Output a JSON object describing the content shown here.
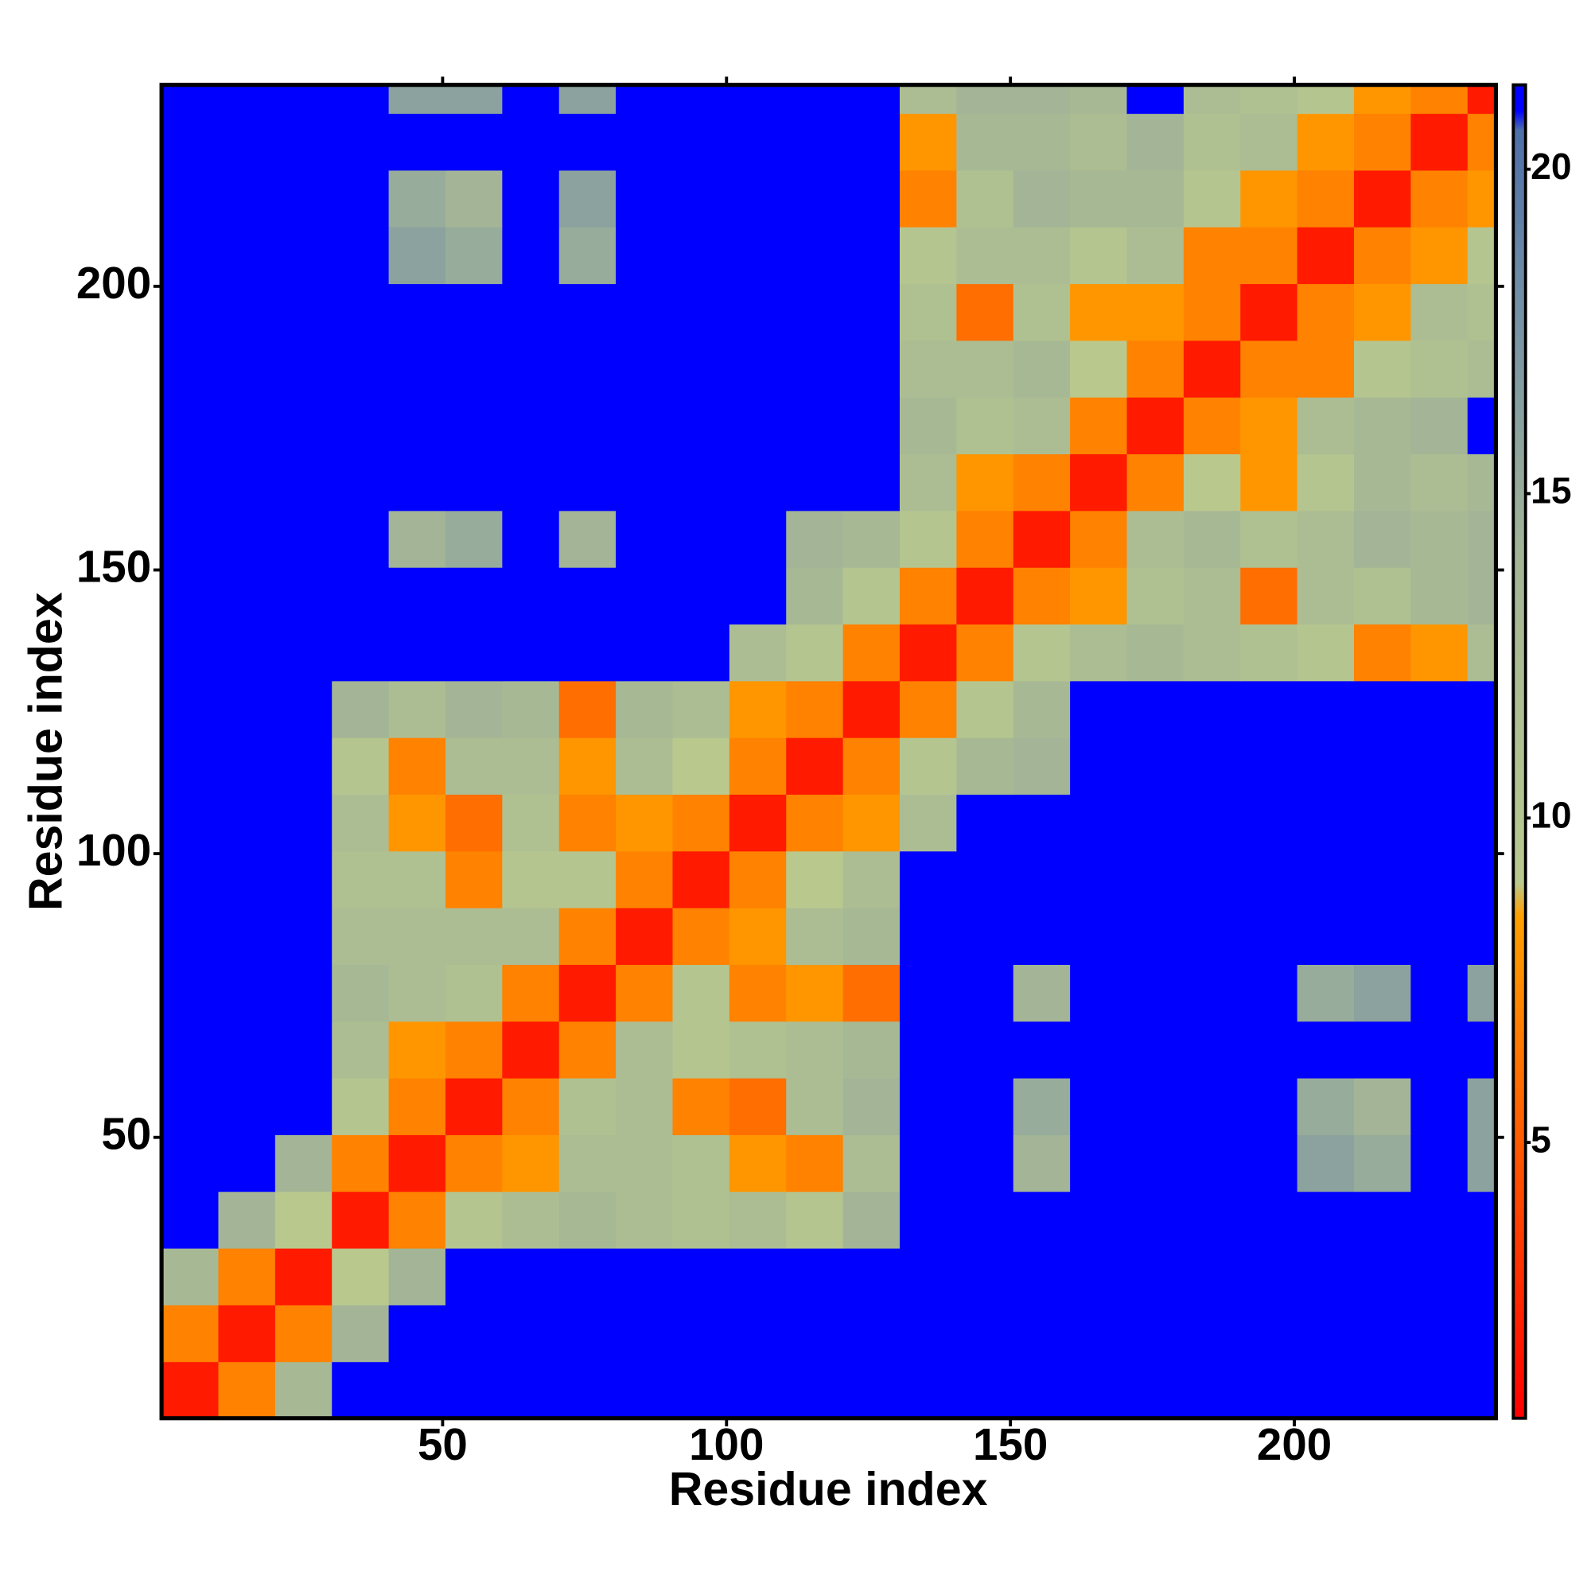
{
  "chart_data": {
    "type": "heatmap",
    "x_label": "Residue index",
    "y_label": "Residue index",
    "bins": [
      0.5,
      10.5,
      20.5,
      30.5,
      40.5,
      50.5,
      60.5,
      70.5,
      80.5,
      90.5,
      100.5,
      110.5,
      120.5,
      130.5,
      140.5,
      150.5,
      160.5,
      170.5,
      180.5,
      190.5,
      200.5,
      210.5,
      220.5,
      230.5,
      235.5
    ],
    "xlim": [
      0.5,
      235.5
    ],
    "ylim": [
      0.5,
      235.5
    ],
    "xticks": [
      50,
      100,
      150,
      200
    ],
    "yticks": [
      50,
      100,
      150,
      200
    ],
    "clim": [
      0.75,
      21.3
    ],
    "cticks": [
      5,
      10,
      15,
      20
    ],
    "colorscale": [
      [
        0.75,
        "#ff0000"
      ],
      [
        5,
        "#ff5a00"
      ],
      [
        8.5,
        "#ffa000"
      ],
      [
        9,
        "#b9c98e"
      ],
      [
        14,
        "#a3b596"
      ],
      [
        18,
        "#728fa6"
      ],
      [
        20.6,
        "#4e6fa8"
      ],
      [
        20.9,
        "#0000ff"
      ],
      [
        21.3,
        "#0000ff"
      ]
    ],
    "values": [
      [
        2,
        7,
        13,
        21,
        21,
        21,
        21,
        21,
        21,
        21,
        21,
        21,
        21,
        21,
        21,
        21,
        21,
        21,
        21,
        21,
        21,
        21,
        21,
        21
      ],
      [
        7,
        2,
        7,
        14,
        21,
        21,
        21,
        21,
        21,
        21,
        21,
        21,
        21,
        21,
        21,
        21,
        21,
        21,
        21,
        21,
        21,
        21,
        21,
        21
      ],
      [
        13,
        7,
        2,
        9,
        14,
        21,
        21,
        21,
        21,
        21,
        21,
        21,
        21,
        21,
        21,
        21,
        21,
        21,
        21,
        21,
        21,
        21,
        21,
        21
      ],
      [
        21,
        14,
        9,
        2,
        7,
        10,
        12,
        13,
        12,
        11,
        12,
        10,
        14,
        21,
        21,
        21,
        21,
        21,
        21,
        21,
        21,
        21,
        21,
        21
      ],
      [
        21,
        21,
        14,
        7,
        2,
        7,
        8,
        12,
        12,
        11,
        8,
        7,
        12,
        21,
        21,
        14,
        21,
        21,
        21,
        21,
        16,
        15,
        21,
        16
      ],
      [
        21,
        21,
        21,
        10,
        7,
        2,
        7,
        11,
        12,
        7,
        6,
        12,
        14,
        21,
        21,
        15,
        21,
        21,
        21,
        21,
        15,
        14,
        21,
        16
      ],
      [
        21,
        21,
        21,
        12,
        8,
        7,
        2,
        7,
        12,
        10,
        11,
        12,
        13,
        21,
        21,
        21,
        21,
        21,
        21,
        21,
        21,
        21,
        21,
        21
      ],
      [
        21,
        21,
        21,
        13,
        12,
        11,
        7,
        2,
        7,
        10,
        7,
        8,
        6,
        21,
        21,
        14,
        21,
        21,
        21,
        21,
        15,
        16,
        21,
        16
      ],
      [
        21,
        21,
        21,
        12,
        12,
        12,
        12,
        7,
        2,
        7,
        8,
        12,
        13,
        21,
        21,
        21,
        21,
        21,
        21,
        21,
        21,
        21,
        21,
        21
      ],
      [
        21,
        21,
        21,
        11,
        11,
        7,
        10,
        10,
        7,
        2,
        7,
        9,
        12,
        21,
        21,
        21,
        21,
        21,
        21,
        21,
        21,
        21,
        21,
        21
      ],
      [
        21,
        21,
        21,
        12,
        8,
        6,
        11,
        7,
        8,
        7,
        2,
        7,
        8,
        12,
        21,
        21,
        21,
        21,
        21,
        21,
        21,
        21,
        21,
        21
      ],
      [
        21,
        21,
        21,
        10,
        7,
        12,
        12,
        8,
        12,
        9,
        7,
        2,
        7,
        10,
        13,
        14,
        21,
        21,
        21,
        21,
        21,
        21,
        21,
        21
      ],
      [
        21,
        21,
        21,
        14,
        12,
        14,
        13,
        6,
        13,
        12,
        8,
        7,
        2,
        7,
        10,
        13,
        21,
        21,
        21,
        21,
        21,
        21,
        21,
        21
      ],
      [
        21,
        21,
        21,
        21,
        21,
        21,
        21,
        21,
        21,
        21,
        12,
        10,
        7,
        2,
        7,
        10,
        12,
        13,
        12,
        11,
        10,
        7,
        8,
        12
      ],
      [
        21,
        21,
        21,
        21,
        21,
        21,
        21,
        21,
        21,
        21,
        21,
        13,
        10,
        7,
        2,
        7,
        8,
        11,
        12,
        6,
        12,
        11,
        13,
        14
      ],
      [
        21,
        21,
        21,
        21,
        14,
        15,
        21,
        14,
        21,
        21,
        21,
        14,
        13,
        10,
        7,
        2,
        7,
        12,
        13,
        11,
        12,
        14,
        13,
        14
      ],
      [
        21,
        21,
        21,
        21,
        21,
        21,
        21,
        21,
        21,
        21,
        21,
        21,
        21,
        12,
        8,
        7,
        2,
        7,
        9,
        8,
        10,
        13,
        12,
        13
      ],
      [
        21,
        21,
        21,
        21,
        21,
        21,
        21,
        21,
        21,
        21,
        21,
        21,
        21,
        13,
        11,
        12,
        7,
        2,
        7,
        8,
        12,
        13,
        14,
        21
      ],
      [
        21,
        21,
        21,
        21,
        21,
        21,
        21,
        21,
        21,
        21,
        21,
        21,
        21,
        12,
        12,
        13,
        9,
        7,
        2,
        7,
        7,
        10,
        11,
        12
      ],
      [
        21,
        21,
        21,
        21,
        21,
        21,
        21,
        21,
        21,
        21,
        21,
        21,
        21,
        11,
        6,
        11,
        8,
        8,
        7,
        2,
        7,
        8,
        12,
        11
      ],
      [
        21,
        21,
        21,
        21,
        16,
        15,
        21,
        15,
        21,
        21,
        21,
        21,
        21,
        10,
        12,
        12,
        10,
        12,
        7,
        7,
        2,
        7,
        8,
        10
      ],
      [
        21,
        21,
        21,
        21,
        15,
        14,
        21,
        16,
        21,
        21,
        21,
        21,
        21,
        7,
        11,
        14,
        13,
        13,
        10,
        8,
        7,
        2,
        7,
        8
      ],
      [
        21,
        21,
        21,
        21,
        21,
        21,
        21,
        21,
        21,
        21,
        21,
        21,
        21,
        8,
        13,
        13,
        12,
        14,
        11,
        12,
        8,
        7,
        2,
        7
      ],
      [
        21,
        21,
        21,
        21,
        16,
        16,
        21,
        16,
        21,
        21,
        21,
        21,
        21,
        12,
        14,
        14,
        13,
        21,
        12,
        11,
        10,
        8,
        7,
        2
      ]
    ]
  }
}
